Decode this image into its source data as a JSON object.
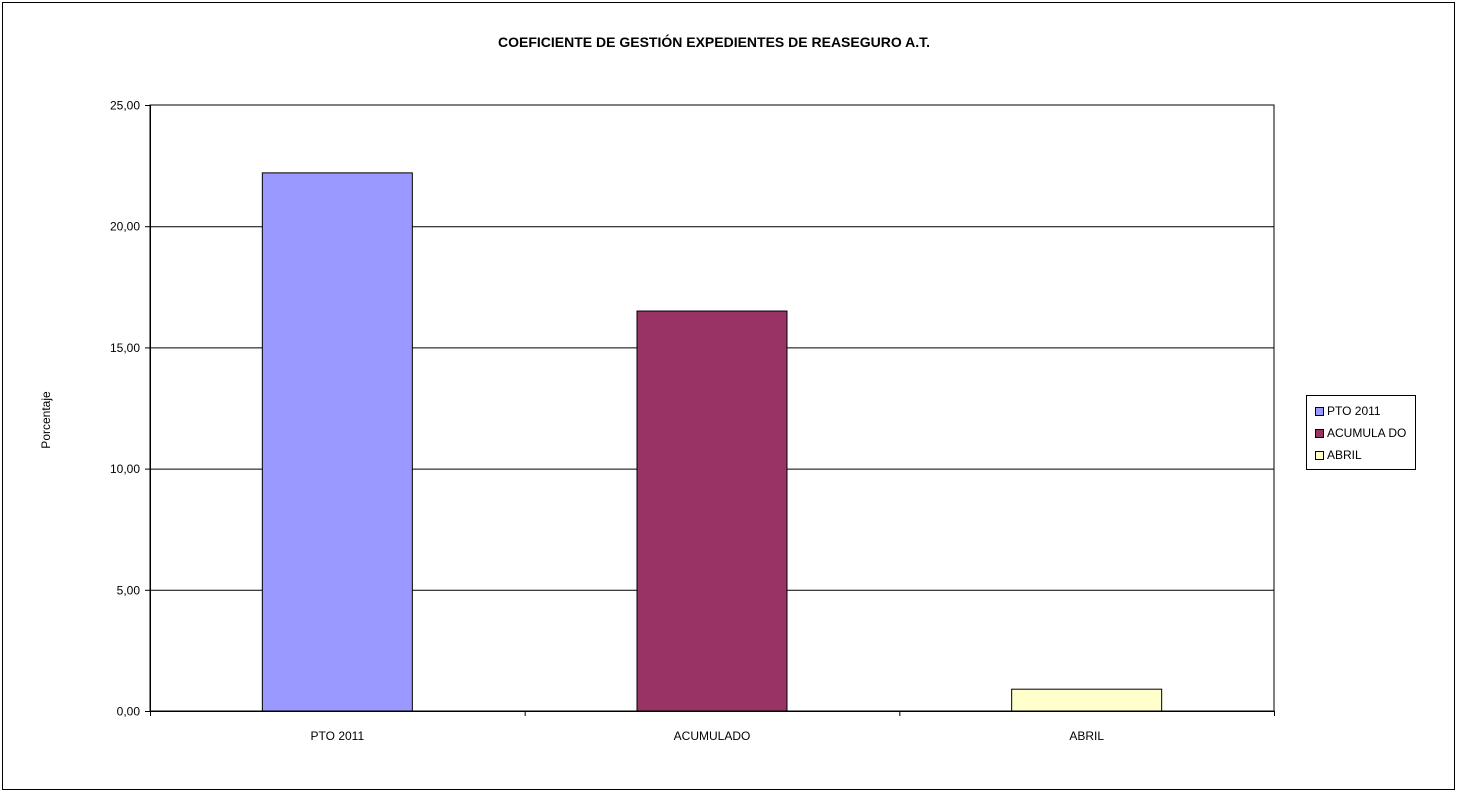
{
  "chart_data": {
    "type": "bar",
    "title": "COEFICIENTE DE GESTIÓN EXPEDIENTES DE REASEGURO A.T.",
    "xlabel": "",
    "ylabel": "Porcentaje",
    "categories": [
      "PTO 2011",
      "ACUMULADO",
      "ABRIL"
    ],
    "values": [
      22.2,
      16.5,
      0.9
    ],
    "colors": [
      "#9999ff",
      "#993366",
      "#ffffcc"
    ],
    "ylim": [
      0,
      25
    ],
    "yticks": [
      "0,00",
      "5,00",
      "10,00",
      "15,00",
      "20,00",
      "25,00"
    ],
    "grid": true,
    "legend_position": "right",
    "legend": [
      "PTO 2011",
      "ACUMULA DO",
      "ABRIL"
    ]
  }
}
